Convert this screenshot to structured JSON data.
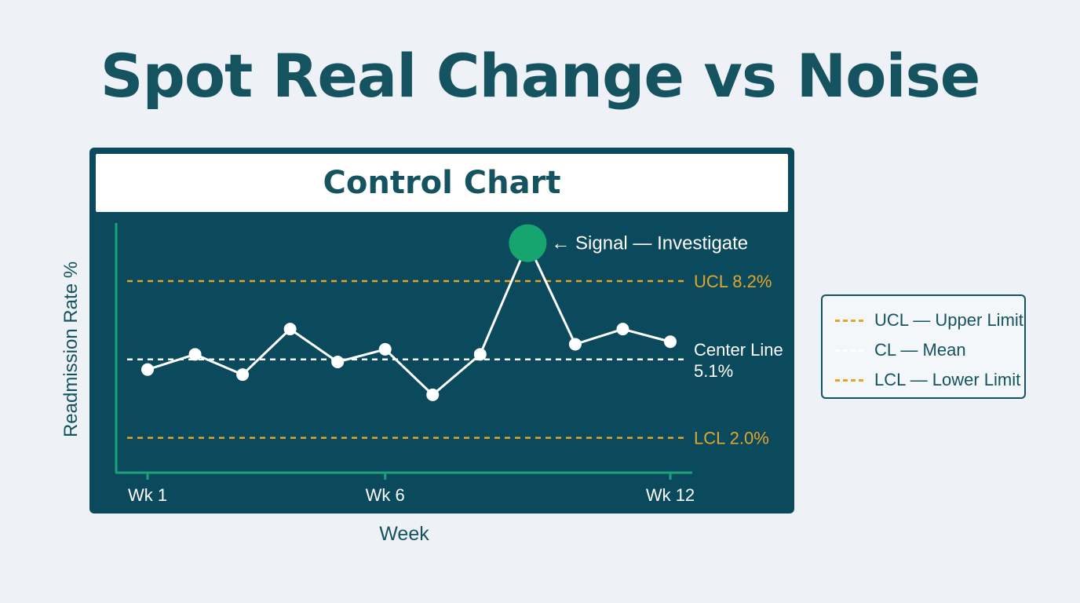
{
  "headline": "Spot Real Change vs Noise",
  "colors": {
    "accent_dark": "#14535f",
    "panel": "#0b4a5c",
    "limit_line": "#e3a52e",
    "center_line": "#ffffff",
    "axis": "#1aa37a",
    "signal": "#16a56f"
  },
  "chart_data": {
    "type": "line",
    "title": "Control Chart",
    "xlabel": "Week",
    "ylabel": "Readmission Rate %",
    "x": [
      1,
      2,
      3,
      4,
      5,
      6,
      7,
      8,
      9,
      10,
      11,
      12
    ],
    "x_tick_labels": [
      {
        "x": 1,
        "label": "Wk 1"
      },
      {
        "x": 6,
        "label": "Wk 6"
      },
      {
        "x": 12,
        "label": "Wk 12"
      }
    ],
    "series": [
      {
        "values": [
          4.7,
          5.3,
          4.5,
          6.3,
          5.0,
          5.5,
          3.7,
          5.3,
          9.7,
          5.7,
          6.3,
          5.8
        ]
      }
    ],
    "ylim": [
      0,
      10
    ],
    "reference_lines": [
      {
        "kind": "ucl",
        "value": 8.2,
        "label": "UCL 8.2%"
      },
      {
        "kind": "cl",
        "value": 5.1,
        "label": "Center Line",
        "label2": "5.1%"
      },
      {
        "kind": "lcl",
        "value": 2.0,
        "label": "LCL 2.0%"
      }
    ],
    "annotation": {
      "x": 9,
      "text": "← Signal — Investigate"
    },
    "legend": {
      "placement": "right",
      "entries": [
        {
          "label": "UCL — Upper Limit",
          "color": "#e3a52e"
        },
        {
          "label": "CL — Mean",
          "color": "#ffffff"
        },
        {
          "label": "LCL — Lower Limit",
          "color": "#e3a52e"
        }
      ]
    }
  }
}
